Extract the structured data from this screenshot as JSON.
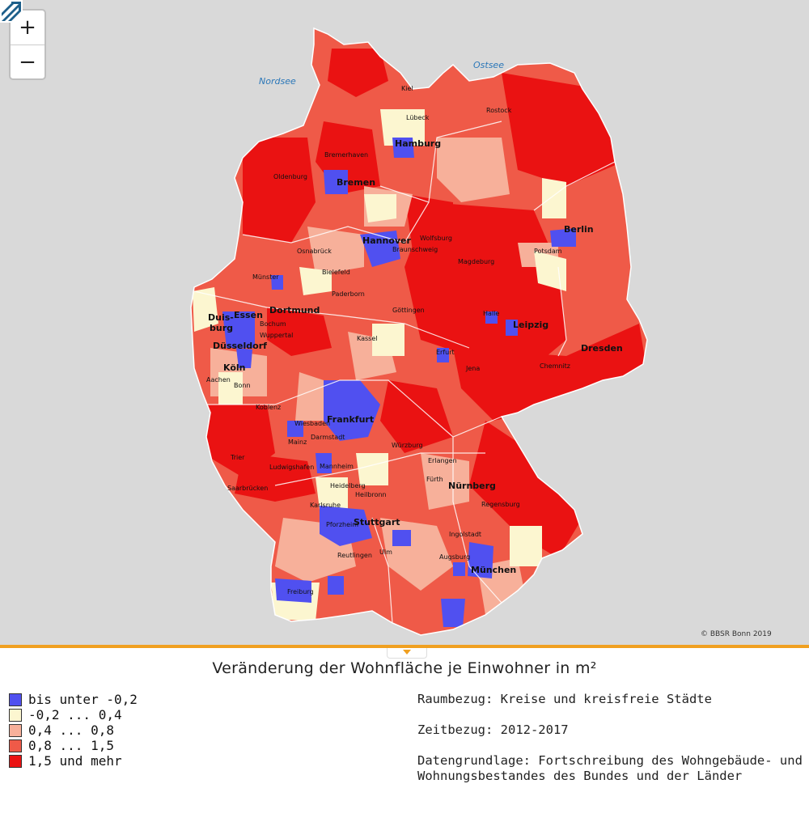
{
  "map": {
    "zoom_in_label": "+",
    "zoom_out_label": "−",
    "credit": "© BBSR Bonn 2019",
    "seas": [
      "Nordsee",
      "Ostsee"
    ],
    "cities_major": [
      "Hamburg",
      "Bremen",
      "Hannover",
      "Berlin",
      "Dortmund",
      "Essen",
      "Duis-",
      "burg",
      "Düsseldorf",
      "Köln",
      "Leipzig",
      "Dresden",
      "Frankfurt",
      "Nürnberg",
      "Stuttgart",
      "München"
    ],
    "cities_minor": [
      "Kiel",
      "Lübeck",
      "Rostock",
      "Bremerhaven",
      "Oldenburg",
      "Wolfsburg",
      "Braunschweig",
      "Osnabrück",
      "Münster",
      "Bielefeld",
      "Paderborn",
      "Magdeburg",
      "Potsdam",
      "Bochum",
      "Wuppertal",
      "Göttingen",
      "Kassel",
      "Halle",
      "Aachen",
      "Bonn",
      "Erfurt",
      "Jena",
      "Chemnitz",
      "Koblenz",
      "Wiesbaden",
      "Mainz",
      "Darmstadt",
      "Würzburg",
      "Trier",
      "Ludwigshafen",
      "Mannheim",
      "Erlangen",
      "Fürth",
      "Saarbrücken",
      "Heidelberg",
      "Heilbronn",
      "Regensburg",
      "Karlsruhe",
      "Pforzheim",
      "Ingolstadt",
      "Reutlingen",
      "Ulm",
      "Augsburg",
      "Freiburg"
    ]
  },
  "legend": {
    "title": "Veränderung der Wohnfläche je Einwohner in m²",
    "classes": [
      {
        "label": "bis unter -0,2",
        "color": "#5050f0"
      },
      {
        "label": "-0,2 ... 0,4",
        "color": "#fcf6d0"
      },
      {
        "label": "0,4 ... 0,8",
        "color": "#f7b09a"
      },
      {
        "label": "0,8 ... 1,5",
        "color": "#ef5a48"
      },
      {
        "label": "1,5 und mehr",
        "color": "#ea1212"
      }
    ]
  },
  "meta": {
    "raumbezug": "Raumbezug: Kreise und kreisfreie Städte",
    "zeitbezug": "Zeitbezug: 2012-2017",
    "datengrundlage_1": "Datengrundlage: Fortschreibung des Wohngebäude- und",
    "datengrundlage_2": "Wohnungsbestandes des Bundes und der Länder"
  }
}
